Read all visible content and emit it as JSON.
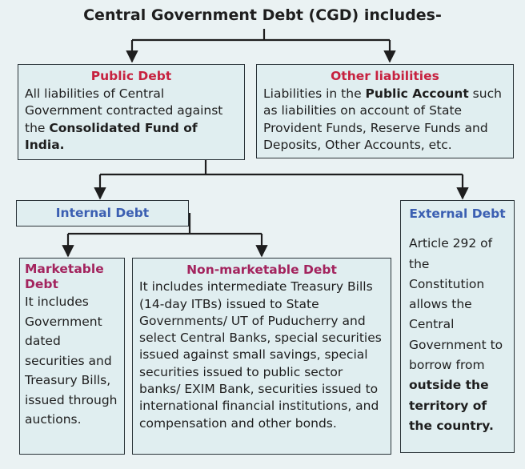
{
  "title": "Central Government Debt (CGD) includes-",
  "nodes": [
    {
      "title": "Public Debt",
      "text": [
        {
          "t": "All liabilities of Central Government contracted against the "
        },
        {
          "b": "Consolidated Fund of India."
        }
      ]
    },
    {
      "title": "Other liabilities",
      "text": [
        {
          "t": "Liabilities in the "
        },
        {
          "b": "Public Account"
        },
        {
          "t": " such as liabilities on account of State Provident Funds, Reserve Funds and Deposits, Other Accounts, etc."
        }
      ]
    },
    {
      "title": "Internal Debt",
      "text": []
    },
    {
      "title": "External Debt",
      "text": [
        {
          "t": "Article 292 of the Constitution allows the Central Government to borrow from "
        },
        {
          "b": "outside the territory of the country."
        }
      ]
    },
    {
      "title": "Marketable Debt",
      "text": [
        {
          "t": "It includes Government dated securities and Treasury Bills, issued through auctions."
        }
      ]
    },
    {
      "title": "Non-marketable Debt",
      "text": [
        {
          "t": "It includes intermediate Treasury Bills (14-day ITBs) issued to State Governments/ UT of Puducherry and select Central Banks, special securities issued against small savings, special securities issued to public sector banks/ EXIM Bank, securities issued to international financial institutions, and compensation and other bonds."
        }
      ]
    }
  ]
}
